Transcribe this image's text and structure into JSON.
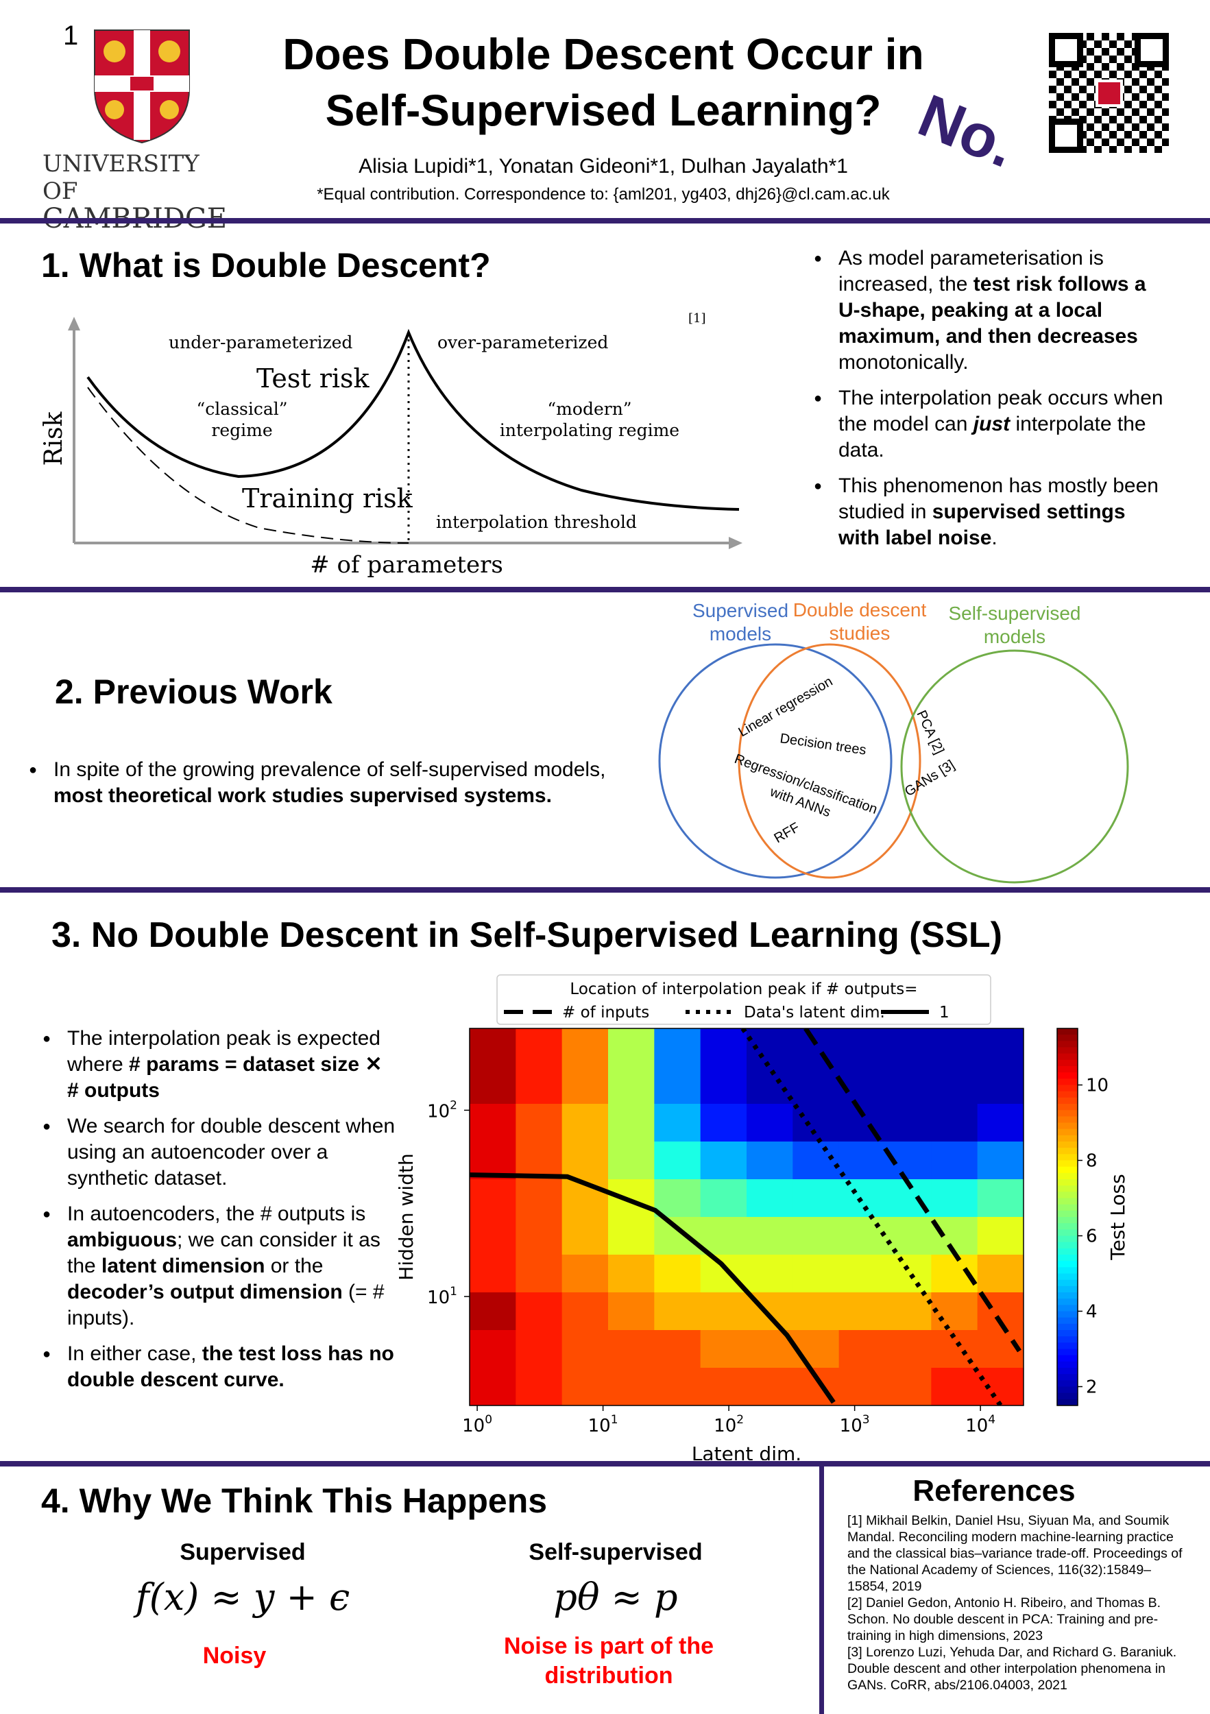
{
  "header": {
    "number": "1",
    "title_line1": "Does Double Descent Occur in",
    "title_line2": "Self-Supervised Learning?",
    "answer": "No.",
    "authors": "Alisia Lupidi*1, Yonatan Gideoni*1, Dulhan Jayalath*1",
    "contact": "*Equal contribution. Correspondence to: {aml201, yg403, dhj26}@cl.cam.ac.uk",
    "logo_text1": "UNIVERSITY OF",
    "logo_text2": "CAMBRIDGE",
    "accent": "#35206e"
  },
  "s1": {
    "heading": "1. What is Double Descent?",
    "fig": {
      "ref": "[1]",
      "under": "under-parameterized",
      "over": "over-parameterized",
      "test": "Test risk",
      "train": "Training risk",
      "classical1": "“classical”",
      "classical2": "regime",
      "modern1": "“modern”",
      "modern2": "interpolating regime",
      "threshold": "interpolation threshold",
      "ylabel": "Risk",
      "xlabel": "# of parameters"
    },
    "bullets": [
      {
        "pre": "As model parameterisation is increased, the ",
        "bold": "test risk follows a U-shape, peaking at a local maximum, and then decreases",
        "post": " monotonically."
      },
      {
        "pre": "The interpolation peak occurs when the model can ",
        "bold": "just",
        "post": " interpolate the data."
      },
      {
        "pre": "This phenomenon has mostly been studied in ",
        "bold": "supervised settings with label noise",
        "post": "."
      }
    ]
  },
  "s2": {
    "heading": "2. Previous Work",
    "bullet_pre": "In spite of the growing prevalence of self-supervised models, ",
    "bullet_bold": "most theoretical work studies supervised systems.",
    "venn": {
      "sup1": "Supervised",
      "sup2": "models",
      "dd1": "Double descent",
      "dd2": "studies",
      "ssl1": "Self-supervised",
      "ssl2": "models",
      "linreg": "Linear regression",
      "trees": "Decision trees",
      "ann1": "Regression/classification",
      "ann2": "with ANNs",
      "rff": "RFF",
      "pca": "PCA [2]",
      "gans": "GANs [3]",
      "colors": {
        "sup": "#4472c4",
        "dd": "#ed7d31",
        "ssl": "#70ad47"
      }
    }
  },
  "s3": {
    "heading": "3. No Double Descent in Self-Supervised Learning (SSL)",
    "bullets": [
      {
        "pre": "The interpolation peak is expected where ",
        "bold": "# params = dataset size ✕ # outputs",
        "post": ""
      },
      {
        "pre": "We search for double descent when using an autoencoder over a synthetic dataset.",
        "bold": "",
        "post": ""
      },
      {
        "pre": "In autoencoders, the # outputs is ",
        "bold": "ambiguous",
        "post": "; we can consider it as the ",
        "bold2": "latent dimension",
        "post2": " or the ",
        "bold3": "decoder’s output dimension",
        "post3": " (= # inputs)."
      },
      {
        "pre": "In either case, ",
        "bold": "the test loss has no double descent curve.",
        "post": ""
      }
    ]
  },
  "chart_data": {
    "type": "heatmap",
    "xlabel": "Latent dim.",
    "ylabel": "Hidden width",
    "colorbar_label": "Test Loss",
    "xscale": "log",
    "yscale": "log",
    "xlim": [
      0.87,
      22000
    ],
    "ylim": [
      2.6,
      275
    ],
    "clim": [
      1.5,
      11.5
    ],
    "xticks": [
      {
        "v": 1,
        "e": "0"
      },
      {
        "v": 10,
        "e": "1"
      },
      {
        "v": 100,
        "e": "2"
      },
      {
        "v": 1000,
        "e": "3"
      },
      {
        "v": 10000,
        "e": "4"
      }
    ],
    "yticks": [
      {
        "v": 10,
        "e": "1"
      },
      {
        "v": 100,
        "e": "2"
      }
    ],
    "cticks": [
      2,
      4,
      6,
      8,
      10
    ],
    "legend_title": "Location of interpolation peak if # outputs=",
    "series": [
      {
        "name": "# of inputs",
        "style": "dashed",
        "points": [
          [
            407,
            275
          ],
          [
            20400,
            5.1
          ]
        ]
      },
      {
        "name": "Data's latent dim.",
        "style": "dotted",
        "points": [
          [
            129,
            275
          ],
          [
            14450,
            2.6
          ]
        ]
      },
      {
        "name": "1",
        "style": "solid",
        "points": [
          [
            0.87,
            45
          ],
          [
            5.2,
            44
          ],
          [
            26,
            29
          ],
          [
            87,
            15
          ],
          [
            290,
            6.2
          ],
          [
            680,
            2.7
          ]
        ]
      }
    ],
    "grid": [
      [
        11,
        10,
        9,
        7,
        4,
        2.5,
        2,
        2,
        2,
        2,
        2,
        2
      ],
      [
        11,
        10,
        9,
        7,
        4,
        2.5,
        2,
        2,
        2,
        2,
        2,
        2
      ],
      [
        10.5,
        9.5,
        8.5,
        7,
        4.5,
        3,
        2.5,
        2,
        2,
        2,
        2,
        2.5
      ],
      [
        10.5,
        9.5,
        8.5,
        7,
        5.5,
        4.5,
        4,
        3.5,
        3.5,
        3.5,
        3.5,
        4
      ],
      [
        10,
        9.5,
        8.5,
        7.5,
        6.5,
        6,
        5.5,
        5.5,
        5.5,
        5.5,
        5.5,
        6
      ],
      [
        10,
        9.5,
        8.5,
        7.5,
        7,
        7,
        7,
        7,
        7,
        7,
        7,
        7.5
      ],
      [
        10,
        9.5,
        9,
        8.5,
        8,
        7.5,
        7.5,
        7.5,
        7.5,
        7.5,
        8,
        8.5
      ],
      [
        11,
        10,
        9.5,
        9,
        8.5,
        8.5,
        8.5,
        8.5,
        8.5,
        8.5,
        9,
        9.5
      ],
      [
        10.5,
        10,
        9.5,
        9.5,
        9.5,
        9,
        9,
        9,
        9.5,
        9.5,
        9.5,
        9.5
      ],
      [
        10.5,
        10,
        9.5,
        9.5,
        9.5,
        9.5,
        9.5,
        9.5,
        9.5,
        9.5,
        10,
        10
      ]
    ]
  },
  "s4": {
    "heading": "4. Why We Think This Happens",
    "sup_title": "Supervised",
    "ssl_title": "Self-supervised",
    "sup_formula": "f(x) ≈ y + ϵ",
    "ssl_formula": "pθ ≈ p",
    "sup_note": "Noisy",
    "ssl_note1": "Noise is part of the",
    "ssl_note2": "distribution",
    "note_color": "#ff0000"
  },
  "refs": {
    "title": "References",
    "items": [
      "[1] Mikhail Belkin, Daniel Hsu, Siyuan Ma, and Soumik Mandal. Reconciling modern machine-learning practice and the classical bias–variance trade-off. Proceedings of the National Academy of Sciences, 116(32):15849–15854, 2019",
      "[2] Daniel Gedon, Antonio H. Ribeiro, and Thomas B. Schon. No double descent in PCA: Training and pre-training in high dimensions, 2023",
      "[3] Lorenzo Luzi, Yehuda Dar, and Richard G. Baraniuk. Double descent and other interpolation phenomena in GANs. CoRR, abs/2106.04003, 2021"
    ]
  }
}
